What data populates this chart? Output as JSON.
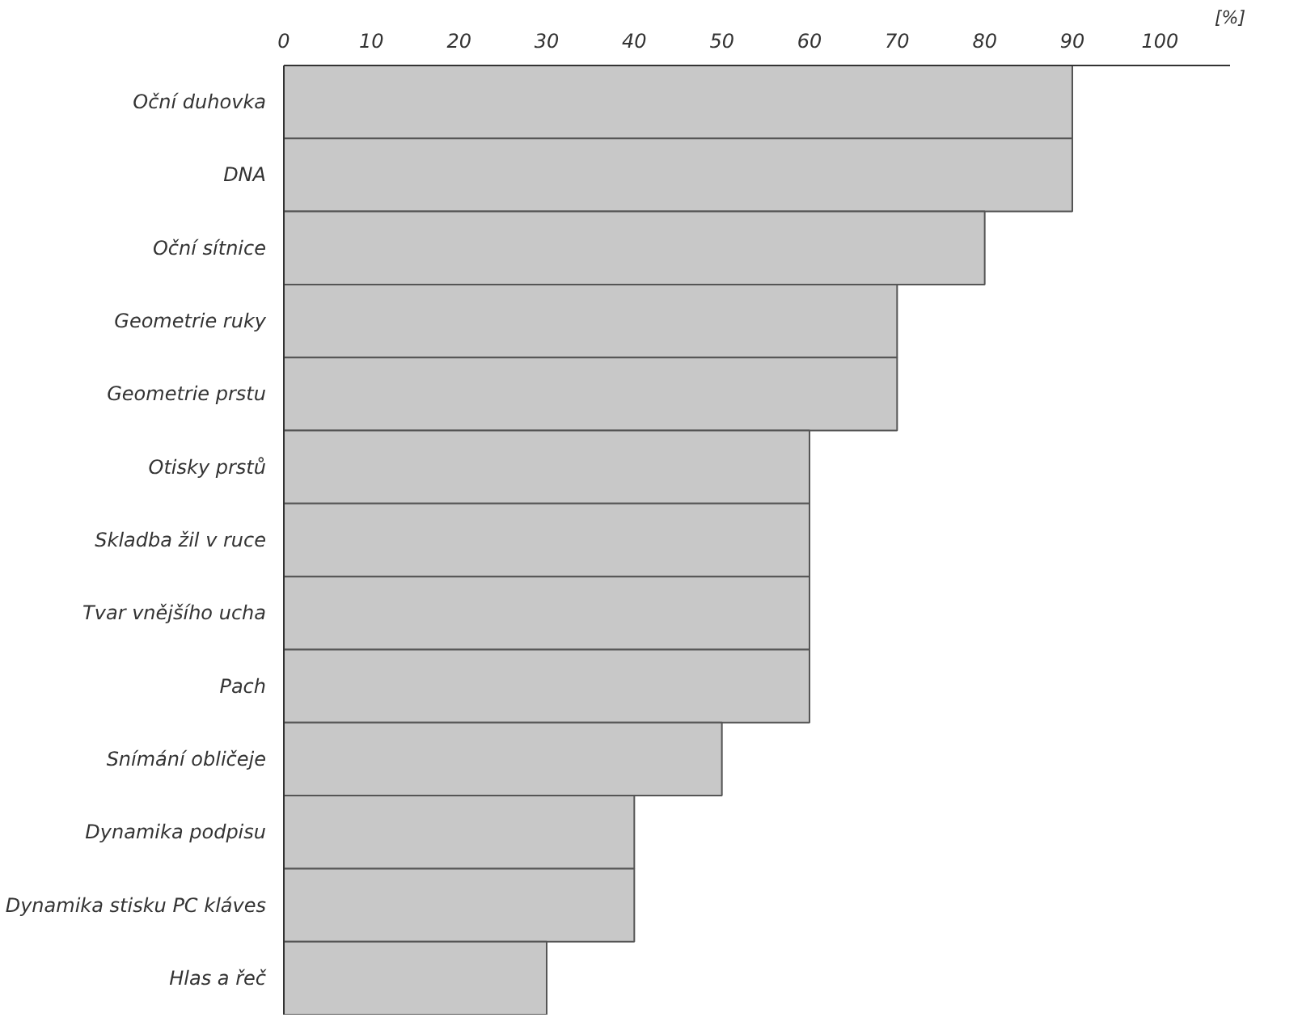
{
  "chart_data": {
    "type": "bar",
    "orientation": "horizontal",
    "xlabel": "[%]",
    "categories": [
      "Oční duhovka",
      "DNA",
      "Oční sítnice",
      "Geometrie ruky",
      "Geometrie prstu",
      "Otisky prstů",
      "Skladba žil v ruce",
      "Tvar vnějšího ucha",
      "Pach",
      "Snímání obličeje",
      "Dynamika podpisu",
      "Dynamika stisku PC kláves",
      "Hlas a řeč"
    ],
    "values": [
      90,
      90,
      80,
      70,
      70,
      60,
      60,
      60,
      60,
      50,
      40,
      40,
      30
    ],
    "color": "#c8c8c8",
    "xlim": [
      0,
      108
    ],
    "xticks": [
      0,
      10,
      20,
      30,
      40,
      50,
      60,
      70,
      80,
      90,
      100
    ],
    "grid": false
  }
}
